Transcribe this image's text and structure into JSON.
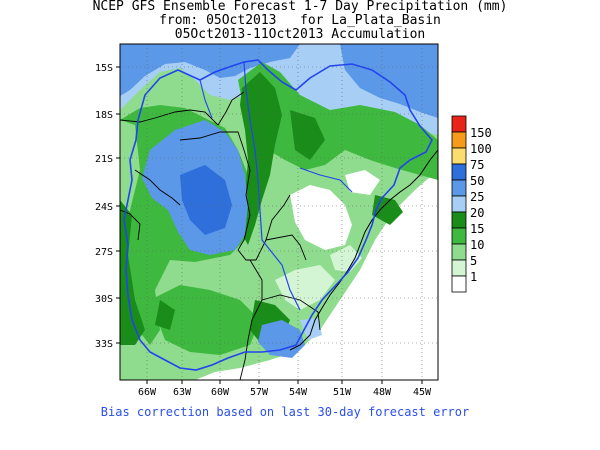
{
  "header": {
    "line1": "NCEP GFS Ensemble Forecast 1-7 Day Precipitation (mm)",
    "line2": "from: 05Oct2013   for La_Plata_Basin",
    "line3": "05Oct2013-11Oct2013 Accumulation"
  },
  "axes": {
    "lat_labels": [
      "15S",
      "18S",
      "21S",
      "24S",
      "27S",
      "30S",
      "33S"
    ],
    "lon_labels": [
      "66W",
      "63W",
      "60W",
      "57W",
      "54W",
      "51W",
      "48W",
      "45W"
    ]
  },
  "legend": {
    "levels": [
      {
        "label": "150",
        "color": "#e8241a"
      },
      {
        "label": "100",
        "color": "#f59a1a"
      },
      {
        "label": "75",
        "color": "#fbdc6e"
      },
      {
        "label": "50",
        "color": "#2f6fdc"
      },
      {
        "label": "25",
        "color": "#5b98e8"
      },
      {
        "label": "20",
        "color": "#a7cef5"
      },
      {
        "label": "15",
        "color": "#1a8c1a"
      },
      {
        "label": "10",
        "color": "#3fb83f"
      },
      {
        "label": "5",
        "color": "#8fdc8f"
      },
      {
        "label": "1",
        "color": "#d4f5d4"
      },
      {
        "label": "",
        "color": "#ffffff"
      }
    ]
  },
  "footer": {
    "note": "Bias correction based on last 30-day forecast error"
  }
}
